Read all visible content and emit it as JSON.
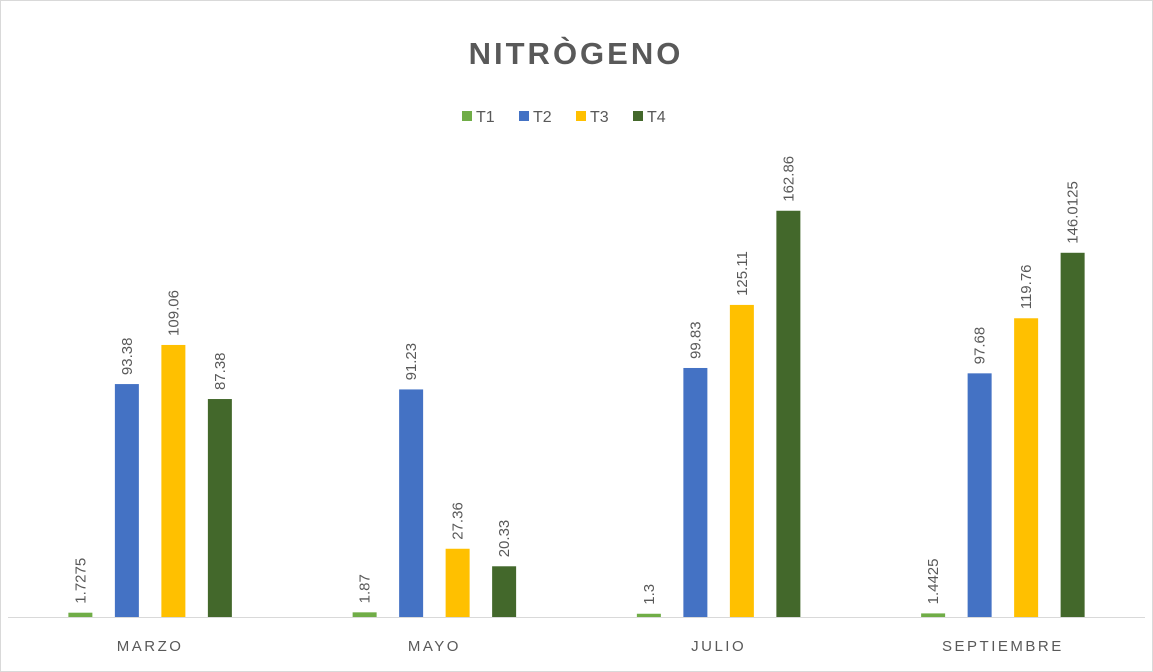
{
  "chart_data": {
    "type": "bar",
    "title": "NITRÒGENO",
    "categories": [
      "MARZO",
      "MAYO",
      "JULIO",
      "SEPTIEMBRE"
    ],
    "series": [
      {
        "name": "T1",
        "color": "#70ad47",
        "values": [
          1.7275,
          1.87,
          1.3,
          1.4425
        ]
      },
      {
        "name": "T2",
        "color": "#4472c4",
        "values": [
          93.38,
          91.23,
          99.83,
          97.68
        ]
      },
      {
        "name": "T3",
        "color": "#ffc000",
        "values": [
          109.06,
          27.36,
          125.11,
          119.76
        ]
      },
      {
        "name": "T4",
        "color": "#43682b",
        "values": [
          87.38,
          20.33,
          162.86,
          146.0125
        ]
      }
    ],
    "ylim": [
      0,
      180
    ],
    "legend": "top"
  }
}
